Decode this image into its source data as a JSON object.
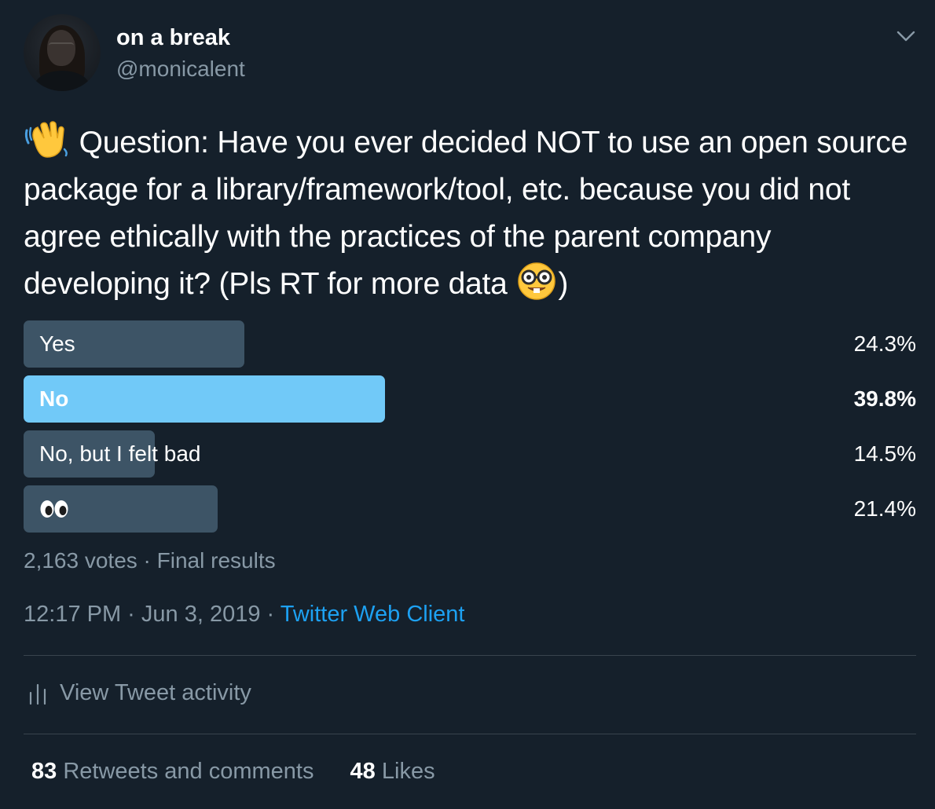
{
  "author": {
    "display_name": "on a break",
    "handle": "@monicalent",
    "avatar_icon": "profile-photo"
  },
  "menu_icon": "chevron-down-icon",
  "tweet": {
    "leading_emoji": "waving-hand-emoji",
    "text": "Question: Have you ever decided NOT to use an open source package for a library/framework/tool, etc. because you did not agree ethically with the practices of the parent company developing it? (Pls RT for more data",
    "trailing_emoji": "nerd-face-emoji",
    "closing": ")"
  },
  "poll": {
    "options": [
      {
        "label": "Yes",
        "percent_text": "24.3%",
        "percent": 24.3,
        "winner": false
      },
      {
        "label": "No",
        "percent_text": "39.8%",
        "percent": 39.8,
        "winner": true
      },
      {
        "label": "No, but I felt bad",
        "percent_text": "14.5%",
        "percent": 14.5,
        "winner": false
      },
      {
        "label": "",
        "icon": "eyes-emoji",
        "percent_text": "21.4%",
        "percent": 21.4,
        "winner": false
      }
    ],
    "meta": "2,163 votes · Final results"
  },
  "timestamp": {
    "text": "12:17 PM · Jun 3, 2019 · ",
    "source": "Twitter Web Client"
  },
  "activity": {
    "label": "View Tweet activity",
    "icon": "bar-chart-icon"
  },
  "stats": {
    "retweets_count": "83",
    "retweets_label": "Retweets and comments",
    "likes_count": "48",
    "likes_label": "Likes"
  },
  "colors": {
    "background": "#15202b",
    "bar": "#3d5466",
    "winner_bar": "#71c9f8",
    "link": "#1da1f2",
    "secondary_text": "#8899a6"
  }
}
